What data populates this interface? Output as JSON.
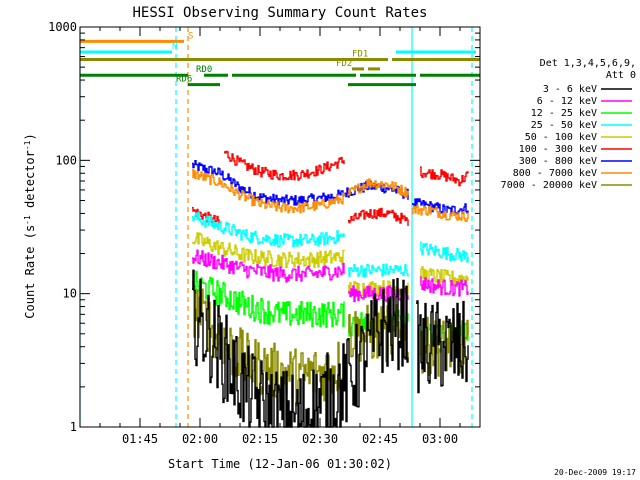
{
  "chart_data": {
    "type": "line",
    "title": "HESSI Observing Summary Count Rates",
    "xlabel": "Start Time (12-Jan-06 01:30:02)",
    "ylabel_parts": [
      "Count Rate (s",
      "-1",
      " detector",
      "-1",
      ")"
    ],
    "yscale": "log",
    "ylim": [
      1,
      1000
    ],
    "xlim_minutes": [
      "01:30",
      "03:10"
    ],
    "x_ticks": [
      "01:45",
      "02:00",
      "02:15",
      "02:30",
      "02:45",
      "03:00"
    ],
    "y_ticks": [
      "1",
      "10",
      "100",
      "1000"
    ],
    "timestamp": "20-Dec-2009 19:17",
    "legend": {
      "header": [
        "Det 1,3,4,5,6,9,",
        "Att 0"
      ],
      "placement": "right",
      "entries": [
        {
          "label": "3 - 6 keV",
          "color": "#000000"
        },
        {
          "label": "6 - 12 keV",
          "color": "#ff00ff"
        },
        {
          "label": "12 - 25 keV",
          "color": "#00ff00"
        },
        {
          "label": "25 - 50 keV",
          "color": "#00ffff"
        },
        {
          "label": "50 - 100 keV",
          "color": "#cccc00"
        },
        {
          "label": "100 - 300 keV",
          "color": "#ff0000"
        },
        {
          "label": "300 - 800 keV",
          "color": "#0000ff"
        },
        {
          "label": "800 - 7000 keV",
          "color": "#ff8c00"
        },
        {
          "label": "7000 - 20000 keV",
          "color": "#8b8b00"
        }
      ]
    },
    "flags": [
      {
        "name": "S",
        "color": "#ff8c00",
        "y": 780,
        "segments": [
          [
            "01:30",
            "01:56"
          ]
        ],
        "label_at": "01:57"
      },
      {
        "name": "N",
        "color": "#00ffff",
        "y": 650,
        "segments": [
          [
            "01:30",
            "01:53"
          ],
          [
            "02:49",
            "03:09"
          ]
        ],
        "label_at": "01:53"
      },
      {
        "name": "FD1",
        "color": "#8b8b00",
        "y": 570,
        "segments": [
          [
            "01:30",
            "02:47"
          ],
          [
            "02:48",
            "03:10"
          ]
        ],
        "label_at": "02:38"
      },
      {
        "name": "FD2",
        "color": "#8b8b00",
        "y": 485,
        "segments": [
          [
            "02:38",
            "02:41"
          ],
          [
            "02:42",
            "02:45"
          ]
        ],
        "label_at": "02:34"
      },
      {
        "name": "RD0",
        "color": "#008000",
        "y": 435,
        "segments": [
          [
            "01:30",
            "01:57"
          ],
          [
            "02:01",
            "02:07"
          ],
          [
            "02:08",
            "02:39"
          ],
          [
            "02:40",
            "02:54"
          ],
          [
            "02:55",
            "03:10"
          ]
        ],
        "label_at": "01:59"
      },
      {
        "name": "RD6",
        "color": "#008000",
        "y": 370,
        "segments": [
          [
            "01:57",
            "02:05"
          ],
          [
            "02:37",
            "02:54"
          ]
        ],
        "label_at": "01:54"
      }
    ],
    "vertical_lines": [
      {
        "x": "01:30",
        "color": "#00ffff",
        "style": "solid"
      },
      {
        "x": "01:54",
        "color": "#00ffff",
        "style": "dashed"
      },
      {
        "x": "01:57",
        "color": "#ff8c00",
        "style": "dashed"
      },
      {
        "x": "02:53",
        "color": "#00ffff",
        "style": "solid"
      },
      {
        "x": "03:08",
        "color": "#00ffff",
        "style": "dashed"
      }
    ],
    "series": [
      {
        "name": "300 - 800 keV",
        "color": "#0000ff",
        "noise": 0.04,
        "segments": [
          [
            [
              "01:58",
              92
            ],
            [
              "02:05",
              80
            ],
            [
              "02:10",
              62
            ],
            [
              "02:15",
              53
            ],
            [
              "02:20",
              50
            ],
            [
              "02:25",
              50
            ],
            [
              "02:30",
              52
            ],
            [
              "02:35",
              55
            ],
            [
              "02:37",
              58
            ]
          ],
          [
            [
              "02:37",
              58
            ],
            [
              "02:42",
              64
            ],
            [
              "02:47",
              62
            ],
            [
              "02:52",
              55
            ]
          ],
          [
            [
              "02:53",
              48
            ],
            [
              "02:58",
              45
            ],
            [
              "03:02",
              42
            ],
            [
              "03:07",
              44
            ]
          ]
        ]
      },
      {
        "name": "100 - 300 keV",
        "color": "#ff0000",
        "noise": 0.04,
        "segments": [
          [
            [
              "01:58",
              42
            ],
            [
              "02:05",
              34
            ]
          ],
          [
            [
              "02:06",
              115
            ],
            [
              "02:10",
              95
            ],
            [
              "02:15",
              82
            ],
            [
              "02:20",
              77
            ],
            [
              "02:25",
              78
            ],
            [
              "02:30",
              85
            ],
            [
              "02:36",
              100
            ]
          ],
          [
            [
              "02:37",
              35
            ],
            [
              "02:42",
              40
            ],
            [
              "02:47",
              40
            ],
            [
              "02:52",
              35
            ]
          ],
          [
            [
              "02:55",
              82
            ],
            [
              "03:00",
              78
            ],
            [
              "03:05",
              70
            ],
            [
              "03:07",
              78
            ]
          ]
        ]
      },
      {
        "name": "800 - 7000 keV",
        "color": "#ff8c00",
        "noise": 0.04,
        "segments": [
          [
            [
              "01:58",
              80
            ],
            [
              "02:05",
              68
            ],
            [
              "02:10",
              55
            ],
            [
              "02:15",
              47
            ],
            [
              "02:20",
              44
            ],
            [
              "02:25",
              44
            ],
            [
              "02:30",
              46
            ],
            [
              "02:36",
              52
            ]
          ],
          [
            [
              "02:37",
              56
            ],
            [
              "02:42",
              68
            ],
            [
              "02:47",
              66
            ],
            [
              "02:52",
              57
            ]
          ],
          [
            [
              "02:53",
              43
            ],
            [
              "02:58",
              42
            ],
            [
              "03:02",
              39
            ],
            [
              "03:07",
              38
            ]
          ]
        ]
      },
      {
        "name": "25 - 50 keV",
        "color": "#00ffff",
        "noise": 0.05,
        "segments": [
          [
            [
              "01:58",
              38
            ],
            [
              "02:05",
              32
            ],
            [
              "02:12",
              27
            ],
            [
              "02:20",
              25
            ],
            [
              "02:28",
              25
            ],
            [
              "02:36",
              27
            ]
          ],
          [
            [
              "02:37",
              15
            ],
            [
              "02:45",
              15
            ],
            [
              "02:52",
              15
            ]
          ],
          [
            [
              "02:55",
              22
            ],
            [
              "03:02",
              20
            ],
            [
              "03:07",
              19
            ]
          ]
        ]
      },
      {
        "name": "50 - 100 keV",
        "color": "#cccc00",
        "noise": 0.06,
        "segments": [
          [
            [
              "01:58",
              26
            ],
            [
              "02:05",
              22
            ],
            [
              "02:12",
              19
            ],
            [
              "02:20",
              18
            ],
            [
              "02:28",
              18
            ],
            [
              "02:36",
              19
            ]
          ],
          [
            [
              "02:37",
              11
            ],
            [
              "02:45",
              11
            ],
            [
              "02:52",
              11
            ]
          ],
          [
            [
              "02:55",
              14
            ],
            [
              "03:02",
              13
            ],
            [
              "03:07",
              13
            ]
          ]
        ]
      },
      {
        "name": "6 - 12 keV",
        "color": "#ff00ff",
        "noise": 0.06,
        "segments": [
          [
            [
              "01:58",
              19
            ],
            [
              "02:05",
              17
            ],
            [
              "02:12",
              15
            ],
            [
              "02:20",
              14
            ],
            [
              "02:28",
              14
            ],
            [
              "02:36",
              15
            ]
          ],
          [
            [
              "02:37",
              10
            ],
            [
              "02:45",
              10
            ],
            [
              "02:52",
              10
            ]
          ],
          [
            [
              "02:55",
              12
            ],
            [
              "03:02",
              11
            ],
            [
              "03:07",
              11
            ]
          ]
        ]
      },
      {
        "name": "12 - 25 keV",
        "color": "#00ff00",
        "noise": 0.1,
        "segments": [
          [
            [
              "01:58",
              12
            ],
            [
              "02:05",
              10
            ],
            [
              "02:12",
              8
            ],
            [
              "02:20",
              7
            ],
            [
              "02:28",
              7
            ],
            [
              "02:36",
              7
            ]
          ],
          [
            [
              "02:37",
              6
            ],
            [
              "02:45",
              6
            ],
            [
              "02:52",
              6
            ]
          ],
          [
            [
              "02:55",
              5
            ],
            [
              "03:02",
              5
            ],
            [
              "03:07",
              5
            ]
          ]
        ]
      },
      {
        "name": "7000 - 20000 keV",
        "color": "#8b8b00",
        "noise": 0.22,
        "segments": [
          [
            [
              "01:58",
              8
            ],
            [
              "02:02",
              6
            ],
            [
              "02:07",
              4
            ],
            [
              "02:12",
              3
            ],
            [
              "02:18",
              2.6
            ],
            [
              "02:24",
              2.4
            ],
            [
              "02:30",
              2.5
            ],
            [
              "02:36",
              3
            ]
          ],
          [
            [
              "02:37",
              5
            ],
            [
              "02:45",
              5
            ],
            [
              "02:52",
              5
            ]
          ],
          [
            [
              "02:55",
              4
            ],
            [
              "03:02",
              4
            ],
            [
              "03:07",
              4
            ]
          ]
        ]
      },
      {
        "name": "3 - 6 keV",
        "color": "#000000",
        "noise": 0.35,
        "segments": [
          [
            [
              "01:58",
              7
            ],
            [
              "02:02",
              5
            ],
            [
              "02:07",
              3
            ],
            [
              "02:12",
              1.8
            ],
            [
              "02:18",
              1.3
            ],
            [
              "02:24",
              1.2
            ],
            [
              "02:30",
              1.5
            ],
            [
              "02:36",
              2
            ],
            [
              "02:40",
              3
            ],
            [
              "02:44",
              5
            ],
            [
              "02:48",
              6
            ],
            [
              "02:52",
              6
            ]
          ],
          [
            [
              "02:54",
              4
            ],
            [
              "02:58",
              4
            ],
            [
              "03:07",
              4
            ]
          ]
        ]
      }
    ]
  }
}
